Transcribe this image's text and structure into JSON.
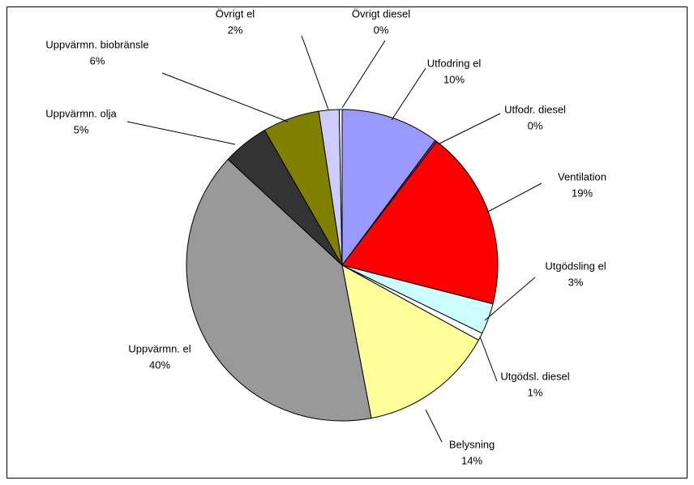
{
  "chart_data": {
    "type": "pie",
    "categories": [
      "Utfodring el",
      "Utfodr. diesel",
      "Ventilation",
      "Utgödsling el",
      "Utgödsl. diesel",
      "Belysning",
      "Uppvärmn. el",
      "Uppvärmn. olja",
      "Uppvärmn. biobränsle",
      "Övrigt el",
      "Övrigt diesel"
    ],
    "values": [
      10.2,
      0.2,
      18.6,
      3.2,
      0.8,
      14.0,
      39.9,
      4.8,
      5.9,
      2.1,
      0.3
    ],
    "value_labels": [
      "10%",
      "0%",
      "19%",
      "3%",
      "1%",
      "14%",
      "40%",
      "5%",
      "6%",
      "2%",
      "0%"
    ],
    "colors": [
      "#9999ff",
      "#993366",
      "#ff0000",
      "#ccffff",
      "#ffffff",
      "#ffff99",
      "#999999",
      "#333333",
      "#808000",
      "#ccccff",
      "#ffffff"
    ]
  }
}
